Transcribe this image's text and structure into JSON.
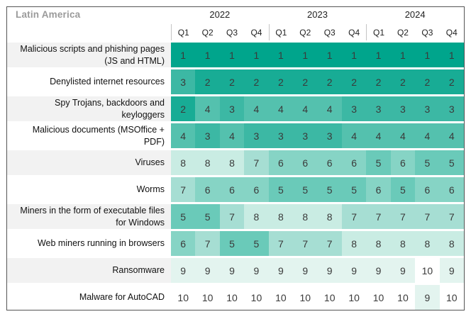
{
  "title": "Latin America",
  "header": {
    "years": [
      {
        "label": "2022",
        "quarters": [
          "Q1",
          "Q2",
          "Q3",
          "Q4"
        ]
      },
      {
        "label": "2023",
        "quarters": [
          "Q1",
          "Q2",
          "Q3",
          "Q4"
        ]
      },
      {
        "label": "2024",
        "quarters": [
          "Q1",
          "Q2",
          "Q3",
          "Q4"
        ]
      }
    ]
  },
  "rows": [
    {
      "label": "Malicious scripts and phishing pages (JS and HTML)",
      "values": [
        1,
        1,
        1,
        1,
        1,
        1,
        1,
        1,
        1,
        1,
        1,
        1
      ]
    },
    {
      "label": "Denylisted internet resources",
      "values": [
        3,
        2,
        2,
        2,
        2,
        2,
        2,
        2,
        2,
        2,
        2,
        2
      ]
    },
    {
      "label": "Spy Trojans, backdoors and keyloggers",
      "values": [
        2,
        4,
        3,
        4,
        4,
        4,
        4,
        3,
        3,
        3,
        3,
        3
      ]
    },
    {
      "label": "Malicious documents (MSOffice + PDF)",
      "values": [
        4,
        3,
        4,
        3,
        3,
        3,
        3,
        4,
        4,
        4,
        4,
        4
      ]
    },
    {
      "label": "Viruses",
      "values": [
        8,
        8,
        8,
        7,
        6,
        6,
        6,
        6,
        5,
        6,
        5,
        5
      ]
    },
    {
      "label": "Worms",
      "values": [
        7,
        6,
        6,
        6,
        5,
        5,
        5,
        5,
        6,
        5,
        6,
        6
      ]
    },
    {
      "label": "Miners in the form of executable files for Windows",
      "values": [
        5,
        5,
        7,
        8,
        8,
        8,
        8,
        7,
        7,
        7,
        7,
        7
      ]
    },
    {
      "label": "Web miners running in browsers",
      "values": [
        6,
        7,
        5,
        5,
        7,
        7,
        7,
        8,
        8,
        8,
        8,
        8
      ]
    },
    {
      "label": "Ransomware",
      "values": [
        9,
        9,
        9,
        9,
        9,
        9,
        9,
        9,
        9,
        9,
        10,
        9
      ]
    },
    {
      "label": "Malware for AutoCAD",
      "values": [
        10,
        10,
        10,
        10,
        10,
        10,
        10,
        10,
        10,
        10,
        9,
        10
      ]
    }
  ],
  "colors": {
    "rank_scale": {
      "1": "#00a58c",
      "2": "#18ac95",
      "3": "#3cb8a4",
      "4": "#54c1ae",
      "5": "#6acab9",
      "6": "#86d4c5",
      "7": "#a6ded3",
      "8": "#c9ece3",
      "9": "#e3f4ef",
      "10": "#ffffff"
    },
    "label_shade": "#f2f2f2",
    "number_text": "#3a3a3a",
    "title_text": "#9a9a9a",
    "frame_border": "#555555"
  },
  "chart_data": {
    "type": "heatmap",
    "title": "Latin America",
    "columns": [
      "2022 Q1",
      "2022 Q2",
      "2022 Q3",
      "2022 Q4",
      "2023 Q1",
      "2023 Q2",
      "2023 Q3",
      "2023 Q4",
      "2024 Q1",
      "2024 Q2",
      "2024 Q3",
      "2024 Q4"
    ],
    "rows": [
      "Malicious scripts and phishing pages (JS and HTML)",
      "Denylisted internet resources",
      "Spy Trojans, backdoors and keyloggers",
      "Malicious documents (MSOffice + PDF)",
      "Viruses",
      "Worms",
      "Miners in the form of executable files for Windows",
      "Web miners running in browsers",
      "Ransomware",
      "Malware for AutoCAD"
    ],
    "values": [
      [
        1,
        1,
        1,
        1,
        1,
        1,
        1,
        1,
        1,
        1,
        1,
        1
      ],
      [
        3,
        2,
        2,
        2,
        2,
        2,
        2,
        2,
        2,
        2,
        2,
        2
      ],
      [
        2,
        4,
        3,
        4,
        4,
        4,
        4,
        3,
        3,
        3,
        3,
        3
      ],
      [
        4,
        3,
        4,
        3,
        3,
        3,
        3,
        4,
        4,
        4,
        4,
        4
      ],
      [
        8,
        8,
        8,
        7,
        6,
        6,
        6,
        6,
        5,
        6,
        5,
        5
      ],
      [
        7,
        6,
        6,
        6,
        5,
        5,
        5,
        5,
        6,
        5,
        6,
        6
      ],
      [
        5,
        5,
        7,
        8,
        8,
        8,
        8,
        7,
        7,
        7,
        7,
        7
      ],
      [
        6,
        7,
        5,
        5,
        7,
        7,
        7,
        8,
        8,
        8,
        8,
        8
      ],
      [
        9,
        9,
        9,
        9,
        9,
        9,
        9,
        9,
        9,
        9,
        10,
        9
      ],
      [
        10,
        10,
        10,
        10,
        10,
        10,
        10,
        10,
        10,
        10,
        9,
        10
      ]
    ],
    "value_meaning": "rank of threat category per quarter (1 = highest, 10 = lowest)",
    "color_scale": {
      "low_value_color": "#00a58c",
      "high_value_color": "#ffffff"
    },
    "legend_position": "none",
    "grid": false
  }
}
